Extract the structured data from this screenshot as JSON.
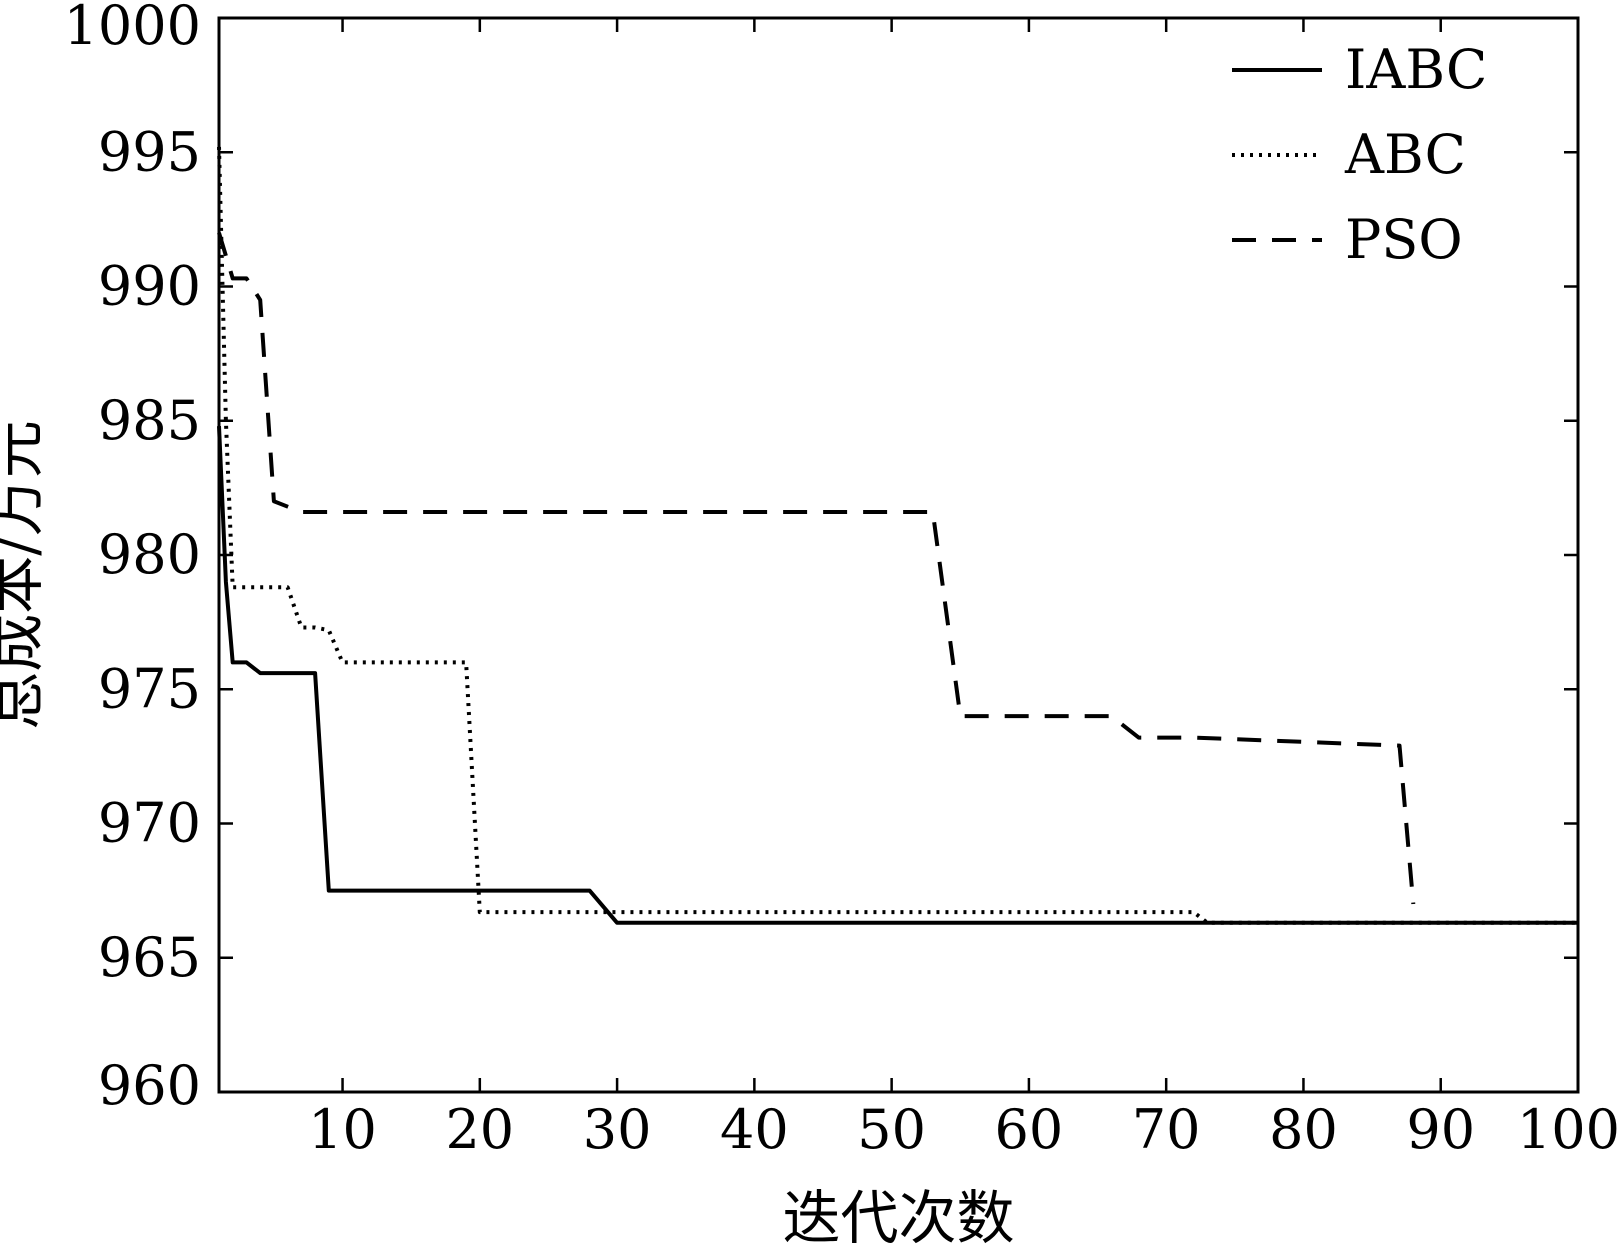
{
  "chart_data": {
    "type": "line",
    "xlabel": "迭代次数",
    "ylabel": "总成本/万元",
    "xlim": [
      1,
      100
    ],
    "ylim": [
      960,
      1000
    ],
    "xticks": [
      10,
      20,
      30,
      40,
      50,
      60,
      70,
      80,
      90,
      100
    ],
    "yticks": [
      960,
      965,
      970,
      975,
      980,
      985,
      990,
      995,
      1000
    ],
    "grid": false,
    "legend_position": "top-right",
    "series": [
      {
        "name": "IABC",
        "style": "solid",
        "color": "#000000",
        "x": [
          1,
          1.5,
          2,
          3,
          4,
          8,
          9,
          28,
          30,
          100
        ],
        "y": [
          984.8,
          979,
          976.0,
          976.0,
          975.6,
          975.6,
          967.5,
          967.5,
          966.3,
          966.3
        ]
      },
      {
        "name": "ABC",
        "style": "dotted",
        "color": "#000000",
        "x": [
          1,
          1.5,
          2,
          6,
          7,
          8,
          9,
          10,
          19,
          20,
          72,
          73,
          100
        ],
        "y": [
          995.2,
          985,
          978.8,
          978.8,
          977.3,
          977.3,
          977.2,
          976.0,
          976.0,
          966.7,
          966.7,
          966.3,
          966.3
        ]
      },
      {
        "name": "PSO",
        "style": "dashed",
        "color": "#000000",
        "x": [
          1,
          2,
          3,
          4,
          5,
          7,
          53,
          55,
          66,
          68,
          72,
          87,
          88
        ],
        "y": [
          992.0,
          990.3,
          990.3,
          989.5,
          982.0,
          981.6,
          981.6,
          974.0,
          974.0,
          973.2,
          973.2,
          972.9,
          967.0
        ]
      }
    ]
  }
}
